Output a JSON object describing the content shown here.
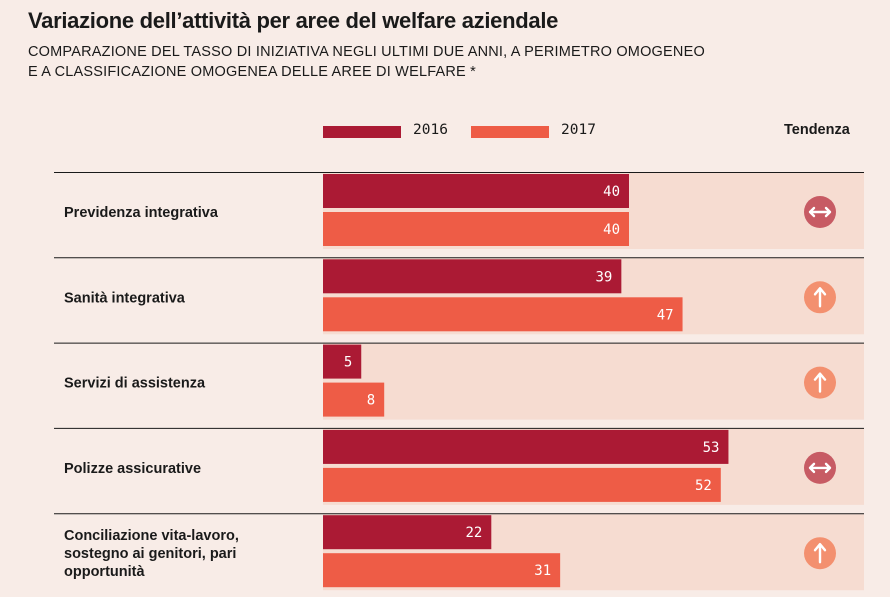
{
  "header": {
    "title": "Variazione dell’attività per aree del welfare aziendale",
    "subtitle_line1": "COMPARAZIONE DEL TASSO DI INIZIATIVA NEGLI ULTIMI DUE ANNI, A PERIMETRO OMOGENEO",
    "subtitle_line2": "E A CLASSIFICAZIONE OMOGENEA DELLE AREE DI WELFARE *"
  },
  "trend_header": "Tendenza",
  "colors": {
    "background": "#f8ece7",
    "row_band": "#f6dcd1",
    "series_2016": "#ab1a34",
    "series_2017": "#ee5c46",
    "trend_stable": "#c75b64",
    "trend_up": "#f3906f"
  },
  "chart_data": {
    "type": "bar",
    "orientation": "horizontal",
    "categories": [
      [
        "Previdenza integrativa"
      ],
      [
        "Sanità integrativa"
      ],
      [
        "Servizi di assistenza"
      ],
      [
        "Polizze assicurative"
      ],
      [
        "Conciliazione vita-lavoro,",
        "sostegno ai genitori, pari",
        "opportunità"
      ]
    ],
    "series": [
      {
        "name": "2016",
        "values": [
          40,
          39,
          5,
          53,
          22
        ]
      },
      {
        "name": "2017",
        "values": [
          40,
          47,
          8,
          52,
          31
        ]
      }
    ],
    "trend": [
      "stable",
      "up",
      "up",
      "stable",
      "up"
    ],
    "trend_icons": [
      "double-arrow-icon",
      "up-arrow-icon",
      "up-arrow-icon",
      "double-arrow-icon",
      "up-arrow-icon"
    ],
    "xlim": [
      0,
      71
    ],
    "legend_position": "top"
  }
}
